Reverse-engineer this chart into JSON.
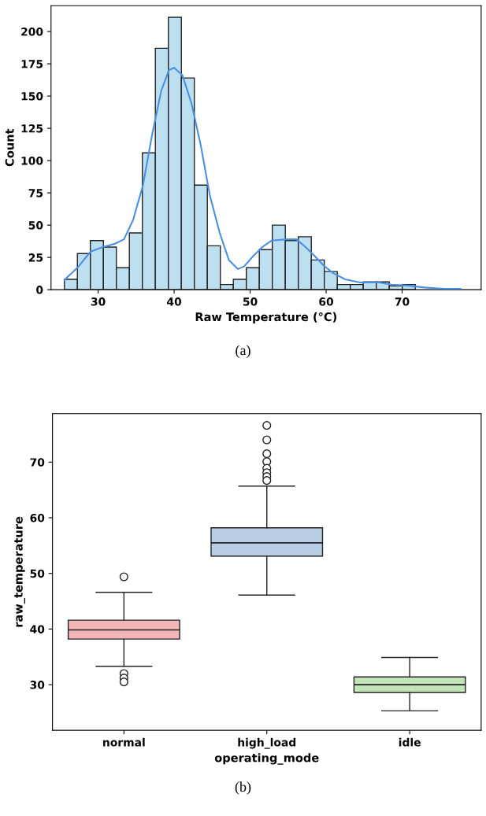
{
  "chart_data": [
    {
      "type": "histogram",
      "xlabel": "Raw Temperature (°C)",
      "ylabel": "Count",
      "bins": [
        25.56,
        27.27,
        28.98,
        30.69,
        32.4,
        34.11,
        35.82,
        37.53,
        39.24,
        40.95,
        42.66,
        44.37,
        46.08,
        47.79,
        49.5,
        51.21,
        52.92,
        54.63,
        56.34,
        58.05,
        59.76,
        61.47,
        63.18,
        64.89,
        66.6,
        68.31,
        70.02,
        71.73,
        73.44,
        75.15,
        76.86
      ],
      "series": [
        {
          "type": "histogram",
          "color": "#bde0f0",
          "values": [
            8,
            28,
            38,
            33,
            17,
            44,
            106,
            187,
            211,
            164,
            81,
            34,
            4,
            8,
            17,
            31,
            50,
            38,
            41,
            23,
            14,
            4,
            4,
            6,
            6,
            3,
            4,
            null,
            null,
            null
          ]
        },
        {
          "type": "line",
          "color": "#4a90e2",
          "x": [
            25.56,
            27.4,
            29.0,
            30.6,
            32.2,
            33.4,
            34.6,
            35.9,
            37.1,
            38.3,
            39.3,
            40.0,
            41.1,
            42.3,
            43.5,
            44.7,
            46.0,
            47.2,
            48.4,
            49.2,
            50.4,
            51.6,
            52.8,
            54.8,
            56.1,
            57.3,
            58.5,
            59.7,
            60.9,
            62.5,
            64.5,
            67.0,
            68.6,
            70.6,
            73.0,
            75.5,
            77.7
          ],
          "values": [
            7.6,
            17.8,
            29.5,
            33,
            35.6,
            39,
            54,
            81,
            120,
            154,
            170,
            172,
            166,
            144,
            112,
            73,
            44,
            23,
            16,
            18,
            26,
            33,
            38,
            39,
            39,
            33,
            26,
            18.5,
            13,
            8,
            5.6,
            5.6,
            3.9,
            3.2,
            1.7,
            0.7,
            0.7
          ]
        }
      ],
      "xlim": [
        23.8,
        80.4
      ],
      "xticks": [
        30,
        40,
        50,
        60,
        70
      ],
      "ylim": [
        0,
        220
      ],
      "yticks": [
        0,
        25,
        50,
        75,
        100,
        125,
        150,
        175,
        200
      ],
      "grid": false,
      "legend": false,
      "annotations": [
        "(a)"
      ]
    },
    {
      "type": "box",
      "xlabel": "operating_mode",
      "ylabel": "raw_temperature",
      "categories": [
        "normal",
        "high_load",
        "idle"
      ],
      "colors": [
        "#f2b6b8",
        "#b8cde3",
        "#c2e4b8"
      ],
      "boxes": [
        {
          "low": 33.3,
          "q1": 38.2,
          "median": 39.85,
          "q3": 41.6,
          "high": 46.6,
          "outliers": [
            49.4,
            32.0,
            31.2,
            30.5
          ]
        },
        {
          "low": 46.1,
          "q1": 53.1,
          "median": 55.5,
          "q3": 58.2,
          "high": 65.7,
          "outliers": [
            76.6,
            74.0,
            71.5,
            70.1,
            68.9,
            68.1,
            67.4,
            66.7
          ]
        },
        {
          "low": 25.3,
          "q1": 28.6,
          "median": 30.0,
          "q3": 31.4,
          "high": 34.9
        }
      ],
      "ylim": [
        21.8,
        78.7
      ],
      "yticks": [
        30,
        40,
        50,
        60,
        70
      ],
      "grid": false,
      "legend": false,
      "annotations": [
        "(b)"
      ]
    }
  ]
}
